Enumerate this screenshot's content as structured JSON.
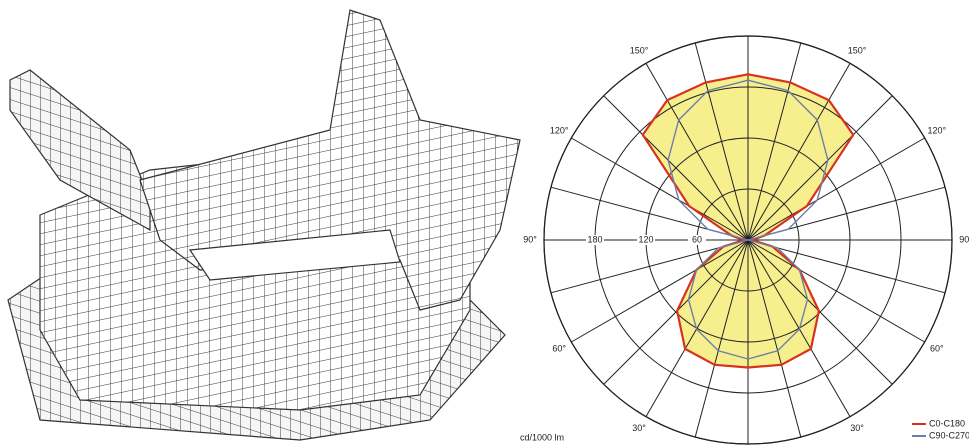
{
  "chart_data": {
    "type": "polar",
    "angles": [
      0,
      15,
      30,
      45,
      60,
      75,
      90,
      105,
      120,
      135,
      150,
      165,
      180
    ],
    "angle_ticks": [
      {
        "value": 30,
        "label": "30°"
      },
      {
        "value": 60,
        "label": "60°"
      },
      {
        "value": 90,
        "label": "90°"
      },
      {
        "value": 120,
        "label": "120°"
      },
      {
        "value": 150,
        "label": "150°"
      }
    ],
    "rlim": [
      0,
      240
    ],
    "rticks": [
      60,
      120,
      180
    ],
    "unit_label": "cd/1000 lm",
    "series": [
      {
        "name": "C0-C180",
        "color": "#d8321e",
        "fill": "#f7ef8e",
        "values": [
          150,
          152,
          148,
          118,
          70,
          30,
          5,
          20,
          80,
          175,
          190,
          192,
          195
        ]
      },
      {
        "name": "C90-C270",
        "color": "#6c7fa8",
        "values": [
          140,
          135,
          121,
          99,
          70,
          36,
          0,
          49,
          94,
          133,
          163,
          182,
          188
        ]
      }
    ]
  }
}
